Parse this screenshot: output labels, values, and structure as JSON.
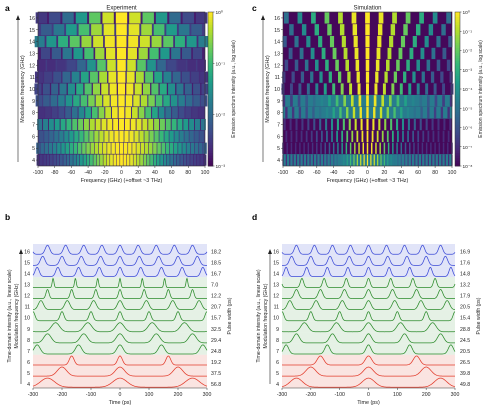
{
  "figure": {
    "panel_letters": [
      "a",
      "c",
      "b",
      "d"
    ]
  },
  "colors": {
    "blue": "#3a49d6",
    "green": "#2a8a2a",
    "red": "#e23a2a",
    "blue_fill": "#c9cdf3",
    "green_fill": "#cfe6cf",
    "red_fill": "#f6cdc8"
  },
  "chart_data": [
    {
      "panel": "a",
      "type": "heatmap",
      "title": "Experiment",
      "xlabel": "Frequency (GHz) (+offset ~3 THz)",
      "ylabel": "Modulation frequency (GHz)",
      "x_ticks": [
        -100,
        -80,
        -60,
        -40,
        -20,
        0,
        20,
        40,
        60,
        80,
        100
      ],
      "y_ticks": [
        4,
        5,
        6,
        7,
        8,
        9,
        10,
        11,
        12,
        13,
        14,
        15,
        16
      ],
      "xlim": [
        -100,
        100
      ],
      "modulation_frequencies_GHz": [
        4,
        5,
        6,
        7,
        8,
        9,
        10,
        11,
        12,
        13,
        14,
        15,
        16
      ],
      "line_spacing_GHz": [
        4,
        5,
        6,
        7,
        8,
        9,
        10,
        11,
        12,
        13,
        14,
        15,
        16
      ],
      "spectral_halfwidth_GHz": [
        55,
        80,
        70,
        90,
        50,
        70,
        65,
        55,
        40,
        60,
        95,
        70,
        55
      ],
      "colorbar_label": "Emission spectrum intensity (a.u., log scale)",
      "colorbar_ticks": [
        "10⁰",
        "10⁻¹",
        "10⁻²",
        "10⁻³"
      ],
      "colormap": "viridis",
      "scale": "log"
    },
    {
      "panel": "c",
      "type": "heatmap",
      "title": "Simulation",
      "xlabel": "Frequency (GHz) (+offset ~3 THz)",
      "ylabel": "Modulation frequency (GHz)",
      "x_ticks": [
        -100,
        -80,
        -60,
        -40,
        -20,
        0,
        20,
        40,
        60,
        80,
        100
      ],
      "y_ticks": [
        4,
        5,
        6,
        7,
        8,
        9,
        10,
        11,
        12,
        13,
        14,
        15,
        16
      ],
      "xlim": [
        -100,
        100
      ],
      "modulation_frequencies_GHz": [
        4,
        5,
        6,
        7,
        8,
        9,
        10,
        11,
        12,
        13,
        14,
        15,
        16
      ],
      "line_spacing_GHz": [
        4,
        5,
        6,
        7,
        8,
        9,
        10,
        11,
        12,
        13,
        14,
        15,
        16
      ],
      "spectral_halfwidth_GHz": [
        30,
        35,
        40,
        45,
        50,
        55,
        60,
        60,
        65,
        70,
        75,
        80,
        85
      ],
      "colorbar_label": "Emission spectrum intensity (a.u., log scale)",
      "colorbar_ticks": [
        "10⁰",
        "10⁻¹",
        "10⁻²",
        "10⁻³",
        "10⁻⁴",
        "10⁻⁵",
        "10⁻⁶",
        "10⁻⁷",
        "10⁻⁸"
      ],
      "colormap": "viridis",
      "scale": "log"
    },
    {
      "panel": "b",
      "type": "line",
      "xlabel": "Time (ps)",
      "ylabel": "Time-domain intensity (a.u., linear scale)",
      "ylabel2": "Modulation frequency (GHz)",
      "right_label": "Pulse width (ps)",
      "x_ticks": [
        -300,
        -200,
        -100,
        0,
        100,
        200,
        300
      ],
      "xlim": [
        -300,
        300
      ],
      "series": [
        {
          "mod_GHz": 16,
          "pulse_width_ps": "18.2",
          "color": "blue"
        },
        {
          "mod_GHz": 15,
          "pulse_width_ps": "18.5",
          "color": "blue"
        },
        {
          "mod_GHz": 14,
          "pulse_width_ps": "16.7",
          "color": "blue"
        },
        {
          "mod_GHz": 13,
          "pulse_width_ps": "7.0",
          "color": "green"
        },
        {
          "mod_GHz": 12,
          "pulse_width_ps": "12.2",
          "color": "green"
        },
        {
          "mod_GHz": 11,
          "pulse_width_ps": "20.7",
          "color": "green"
        },
        {
          "mod_GHz": 10,
          "pulse_width_ps": "15.7",
          "color": "green"
        },
        {
          "mod_GHz": 9,
          "pulse_width_ps": "32.5",
          "color": "green"
        },
        {
          "mod_GHz": 8,
          "pulse_width_ps": "29.4",
          "color": "green"
        },
        {
          "mod_GHz": 7,
          "pulse_width_ps": "24.8",
          "color": "green"
        },
        {
          "mod_GHz": 6,
          "pulse_width_ps": "19.2",
          "color": "red"
        },
        {
          "mod_GHz": 5,
          "pulse_width_ps": "37.5",
          "color": "red"
        },
        {
          "mod_GHz": 4,
          "pulse_width_ps": "56.8",
          "color": "red"
        }
      ]
    },
    {
      "panel": "d",
      "type": "line",
      "xlabel": "Time (ps)",
      "ylabel": "Time-domain intensity (a.u., linear scale)",
      "ylabel2": "Modulation frequency (GHz)",
      "right_label": "Pulse width (ps)",
      "x_ticks": [
        -300,
        -200,
        -100,
        0,
        100,
        200,
        300
      ],
      "xlim": [
        -300,
        300
      ],
      "series": [
        {
          "mod_GHz": 16,
          "pulse_width_ps": "16.9",
          "color": "blue"
        },
        {
          "mod_GHz": 15,
          "pulse_width_ps": "17.6",
          "color": "blue"
        },
        {
          "mod_GHz": 14,
          "pulse_width_ps": "14.8",
          "color": "blue"
        },
        {
          "mod_GHz": 13,
          "pulse_width_ps": "13.2",
          "color": "green"
        },
        {
          "mod_GHz": 12,
          "pulse_width_ps": "17.9",
          "color": "green"
        },
        {
          "mod_GHz": 11,
          "pulse_width_ps": "20.5",
          "color": "green"
        },
        {
          "mod_GHz": 10,
          "pulse_width_ps": "15.4",
          "color": "green"
        },
        {
          "mod_GHz": 9,
          "pulse_width_ps": "28.8",
          "color": "green"
        },
        {
          "mod_GHz": 8,
          "pulse_width_ps": "24.5",
          "color": "green"
        },
        {
          "mod_GHz": 7,
          "pulse_width_ps": "20.5",
          "color": "green"
        },
        {
          "mod_GHz": 6,
          "pulse_width_ps": "26.5",
          "color": "red"
        },
        {
          "mod_GHz": 5,
          "pulse_width_ps": "39.8",
          "color": "red"
        },
        {
          "mod_GHz": 4,
          "pulse_width_ps": "49.8",
          "color": "red"
        }
      ]
    }
  ]
}
